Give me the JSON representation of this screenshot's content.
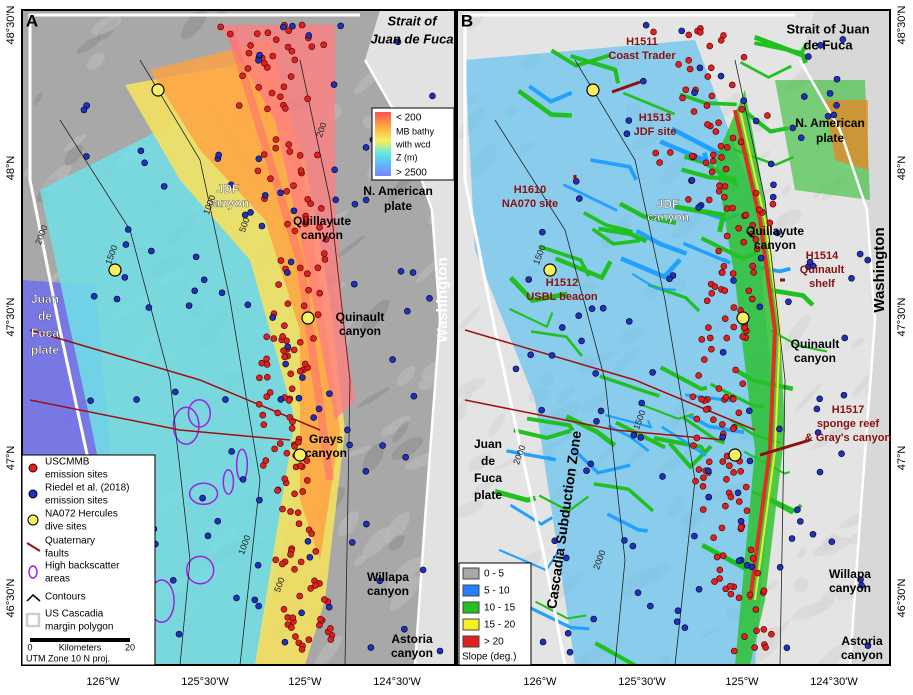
{
  "latitude_labels": [
    "48°30'N",
    "48°N",
    "47°30'N",
    "47°N",
    "46°30'N"
  ],
  "longitude_labels": [
    "126°W",
    "125°30'W",
    "125°W",
    "124°30'W"
  ],
  "panel_a": {
    "letter": "A",
    "place_labels": [
      {
        "lines": [
          "Strait of",
          "Juan de Fuca"
        ]
      },
      {
        "lines": [
          "N. American",
          "plate"
        ]
      },
      {
        "lines": [
          "Washington"
        ]
      },
      {
        "lines": [
          "JDF",
          "canyon"
        ]
      },
      {
        "lines": [
          "Quillayute",
          "canyon"
        ]
      },
      {
        "lines": [
          "Quinault",
          "canyon"
        ]
      },
      {
        "lines": [
          "Grays",
          "canyon"
        ]
      },
      {
        "lines": [
          "Willapa",
          "canyon"
        ]
      },
      {
        "lines": [
          "Astoria",
          "canyon"
        ]
      },
      {
        "lines": [
          "Juan",
          "de",
          "Fuca",
          "plate"
        ]
      }
    ],
    "contour_labels": [
      "1000",
      "500",
      "200",
      "2000",
      "1500",
      "2000",
      "1000",
      "500"
    ],
    "colorbar": {
      "top": "< 200",
      "middle": [
        "MB bathy",
        "with wcd",
        "Z (m)"
      ],
      "bottom": "> 2500"
    },
    "legend": [
      {
        "lines": [
          "USCMMB",
          "emission sites"
        ]
      },
      {
        "lines": [
          "Riedel et al. (2018)",
          "emission sites"
        ]
      },
      {
        "lines": [
          "NA072 Hercules",
          "dive sites"
        ]
      },
      {
        "lines": [
          "Quaternary",
          "faults"
        ]
      },
      {
        "lines": [
          "High backscatter",
          "areas"
        ]
      },
      {
        "lines": [
          "Contours"
        ]
      },
      {
        "lines": [
          "US Cascadia",
          "margin polygon"
        ]
      }
    ],
    "scale": {
      "start": "0",
      "unit": "Kilometers",
      "end": "20",
      "projection": "UTM Zone 10 N proj."
    }
  },
  "panel_b": {
    "letter": "B",
    "place_labels": [
      {
        "lines": [
          "Strait of Juan",
          "de Fuca"
        ]
      },
      {
        "lines": [
          "N. American",
          "plate"
        ]
      },
      {
        "lines": [
          "Washington"
        ]
      },
      {
        "lines": [
          "JDF",
          "canyon"
        ]
      },
      {
        "lines": [
          "Quillayute",
          "canyon"
        ]
      },
      {
        "lines": [
          "Quinault",
          "canyon"
        ]
      },
      {
        "lines": [
          "Willapa",
          "canyon"
        ]
      },
      {
        "lines": [
          "Astoria",
          "canyon"
        ]
      },
      {
        "lines": [
          "Juan",
          "de",
          "Fuca",
          "plate"
        ]
      },
      {
        "lines": [
          "Cascadia Subduction Zone"
        ]
      }
    ],
    "dive_labels": [
      {
        "lines": [
          "H1511",
          "Coast Trader"
        ]
      },
      {
        "lines": [
          "H1513",
          "JDF site"
        ]
      },
      {
        "lines": [
          "H1610",
          "NA070 site"
        ]
      },
      {
        "lines": [
          "H1512",
          "USBL beacon"
        ]
      },
      {
        "lines": [
          "H1514",
          "Quinault",
          "shelf"
        ]
      },
      {
        "lines": [
          "H1517",
          "sponge reef",
          "& Gray's canyon"
        ]
      }
    ],
    "contour_labels": [
      "2000",
      "1500",
      "2000",
      "1500"
    ],
    "slope_legend": {
      "items": [
        "0 - 5",
        "5 - 10",
        "10 - 15",
        "15 - 20",
        "> 20"
      ],
      "title": "Slope (deg.)"
    }
  }
}
